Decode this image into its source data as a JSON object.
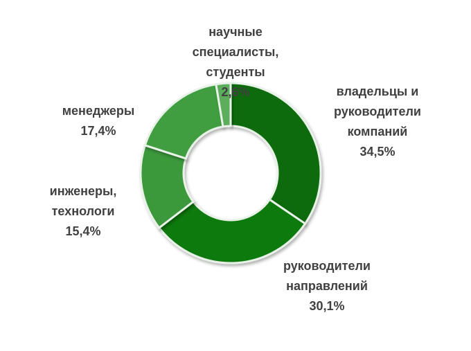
{
  "chart_data": {
    "type": "donut",
    "categories": [
      "владельцы и руководители компаний",
      "руководители направлений",
      "инженеры, технологи",
      "менеджеры",
      "научные специалисты, студенты"
    ],
    "values": [
      34.5,
      30.1,
      15.4,
      17.4,
      2.6
    ],
    "value_labels": [
      "34,5%",
      "30,1%",
      "15,4%",
      "17,4%",
      "2,6%"
    ],
    "colors": [
      "#0b6b0b",
      "#117a11",
      "#3b983b",
      "#3f9e3f",
      "#5cae5c"
    ]
  }
}
